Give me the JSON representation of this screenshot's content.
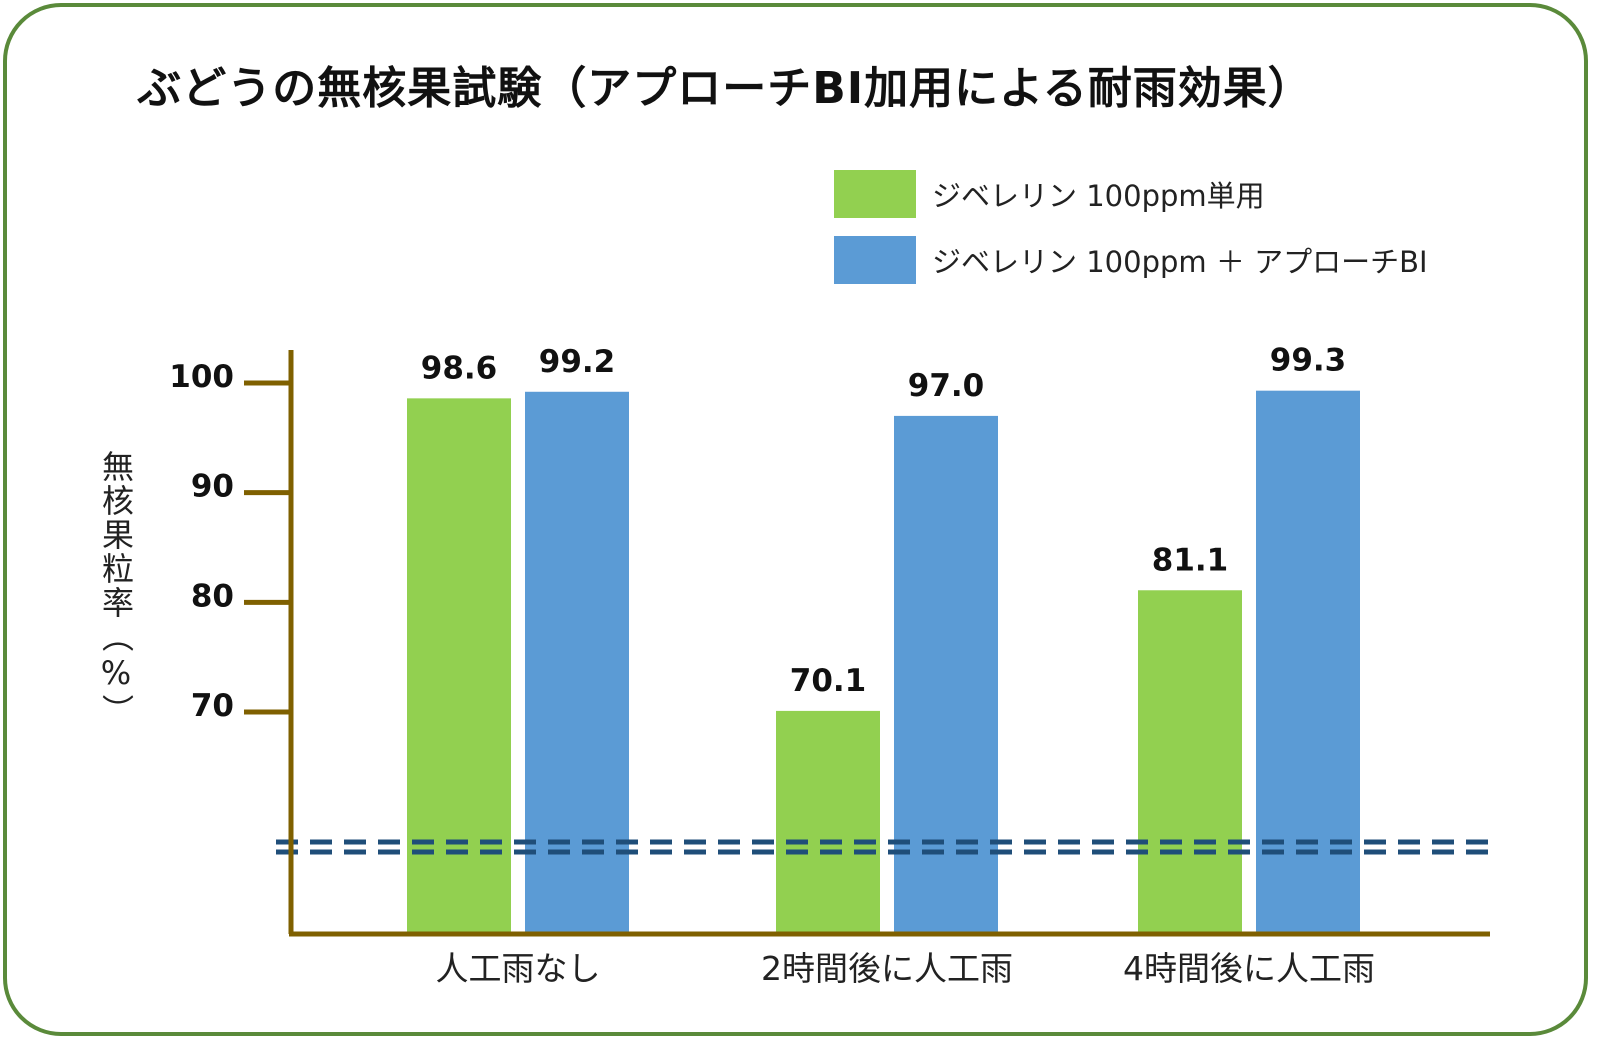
{
  "title": "ぶどうの無核果試験（アプローチBI加用による耐雨効果）",
  "legend": [
    {
      "label": "ジベレリン 100ppm単用",
      "color": "#92d050"
    },
    {
      "label": "ジベレリン 100ppm ＋ アプローチBI",
      "color": "#5b9bd5"
    }
  ],
  "axis_color": "#7f6000",
  "break_line_color": "#1f4e79",
  "chart_data": {
    "type": "bar",
    "title": "ぶどうの無核果試験（アプローチBI加用による耐雨効果）",
    "ylabel": "無核果粒率（%）",
    "xlabel": "",
    "categories": [
      "人工雨なし",
      "2時間後に人工雨",
      "4時間後に人工雨"
    ],
    "yticks": [
      70,
      80,
      90,
      100
    ],
    "ylim": [
      70,
      100
    ],
    "axis_break": true,
    "series": [
      {
        "name": "ジベレリン 100ppm単用",
        "values": [
          98.6,
          70.1,
          81.1
        ],
        "labels": [
          "98.6",
          "70.1",
          "81.1"
        ]
      },
      {
        "name": "ジベレリン 100ppm ＋ アプローチBI",
        "values": [
          99.2,
          97.0,
          99.3
        ],
        "labels": [
          "99.2",
          "97.0",
          "99.3"
        ]
      }
    ],
    "legend_position": "top-right",
    "grid": false
  }
}
